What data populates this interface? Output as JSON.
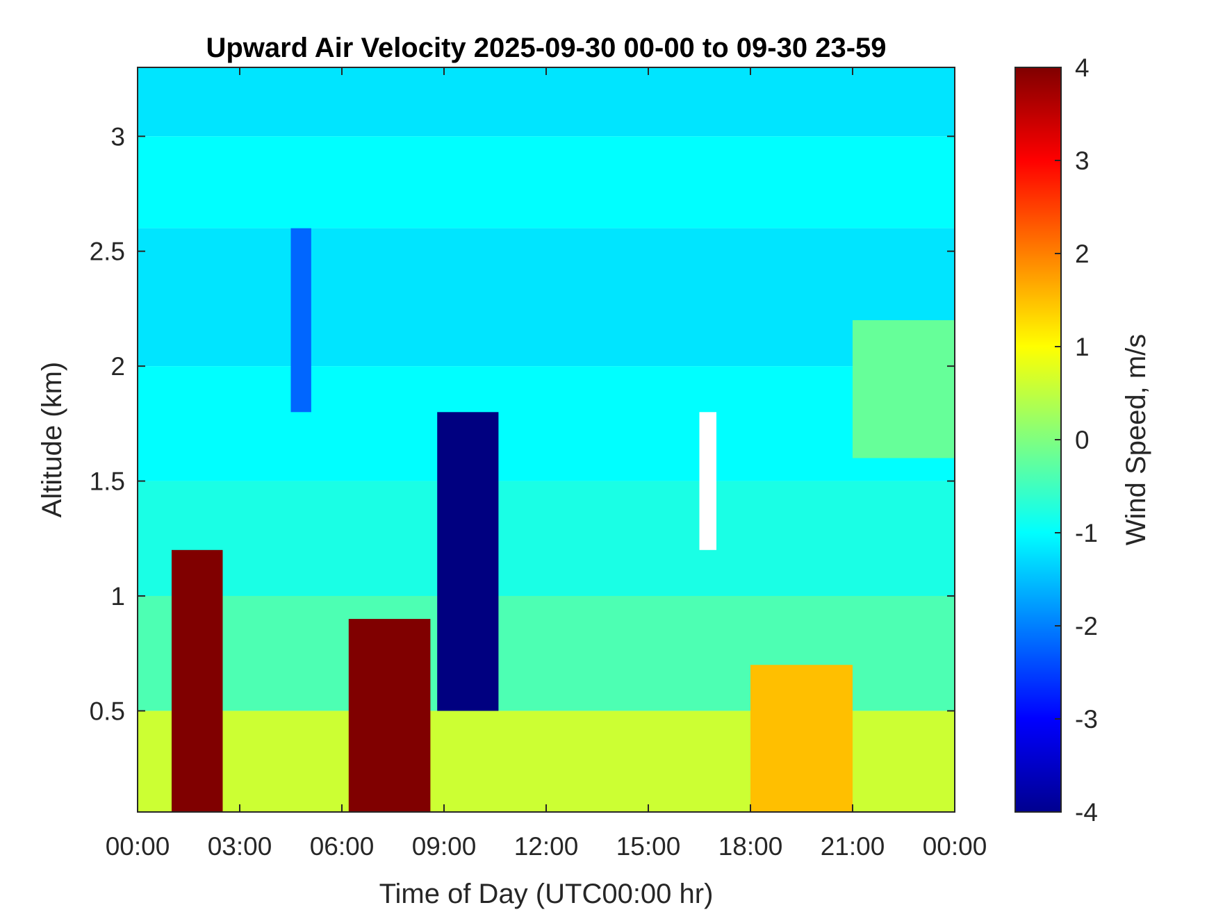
{
  "chart_data": {
    "type": "heatmap",
    "title": "Upward Air Velocity 2025-09-30 00-00 to 09-30 23-59",
    "xlabel": "Time of Day (UTC00:00 hr)",
    "ylabel": "Altitude (km)",
    "colorbar_label": "Wind Speed, m/s",
    "xlim": [
      0,
      24
    ],
    "ylim": [
      0.06,
      3.3
    ],
    "clim": [
      -4,
      4
    ],
    "colormap": "jet",
    "x_ticks": [
      {
        "value": 0,
        "label": "00:00"
      },
      {
        "value": 3,
        "label": "03:00"
      },
      {
        "value": 6,
        "label": "06:00"
      },
      {
        "value": 9,
        "label": "09:00"
      },
      {
        "value": 12,
        "label": "12:00"
      },
      {
        "value": 15,
        "label": "15:00"
      },
      {
        "value": 18,
        "label": "18:00"
      },
      {
        "value": 21,
        "label": "21:00"
      },
      {
        "value": 24,
        "label": "00:00"
      }
    ],
    "y_ticks": [
      {
        "value": 0.5,
        "label": "0.5"
      },
      {
        "value": 1,
        "label": "1"
      },
      {
        "value": 1.5,
        "label": "1.5"
      },
      {
        "value": 2,
        "label": "2"
      },
      {
        "value": 2.5,
        "label": "2.5"
      },
      {
        "value": 3,
        "label": "3"
      }
    ],
    "colorbar_ticks": [
      {
        "value": 4,
        "label": "4"
      },
      {
        "value": 3,
        "label": "3"
      },
      {
        "value": 2,
        "label": "2"
      },
      {
        "value": 1,
        "label": "1"
      },
      {
        "value": 0,
        "label": "0"
      },
      {
        "value": -1,
        "label": "-1"
      },
      {
        "value": -2,
        "label": "-2"
      },
      {
        "value": -3,
        "label": "-3"
      },
      {
        "value": -4,
        "label": "-4"
      }
    ],
    "regions": [
      {
        "x": [
          0,
          24
        ],
        "y": [
          3.0,
          3.3
        ],
        "value": -1.2
      },
      {
        "x": [
          0,
          24
        ],
        "y": [
          2.6,
          3.0
        ],
        "value": -1.0
      },
      {
        "x": [
          0,
          24
        ],
        "y": [
          2.0,
          2.6
        ],
        "value": -1.2
      },
      {
        "x": [
          0,
          24
        ],
        "y": [
          1.5,
          2.0
        ],
        "value": -1.0
      },
      {
        "x": [
          0,
          24
        ],
        "y": [
          1.0,
          1.5
        ],
        "value": -0.8
      },
      {
        "x": [
          0,
          24
        ],
        "y": [
          0.5,
          1.0
        ],
        "value": -0.4
      },
      {
        "x": [
          0,
          24
        ],
        "y": [
          0.06,
          0.5
        ],
        "value": 0.6
      },
      {
        "x": [
          1,
          2.5
        ],
        "y": [
          0.06,
          1.2
        ],
        "value": 4.0
      },
      {
        "x": [
          6.2,
          8.6
        ],
        "y": [
          0.06,
          0.9
        ],
        "value": 4.0
      },
      {
        "x": [
          8.8,
          10.6
        ],
        "y": [
          0.5,
          1.8
        ],
        "value": -4.0
      },
      {
        "x": [
          4.5,
          5.1
        ],
        "y": [
          1.8,
          2.6
        ],
        "value": -2.2
      },
      {
        "x": [
          16.5,
          17.0
        ],
        "y": [
          1.2,
          1.8
        ],
        "value": null
      },
      {
        "x": [
          18.0,
          21.0
        ],
        "y": [
          0.06,
          0.7
        ],
        "value": 1.5
      },
      {
        "x": [
          21.0,
          24
        ],
        "y": [
          1.6,
          2.2
        ],
        "value": -0.2
      }
    ]
  }
}
